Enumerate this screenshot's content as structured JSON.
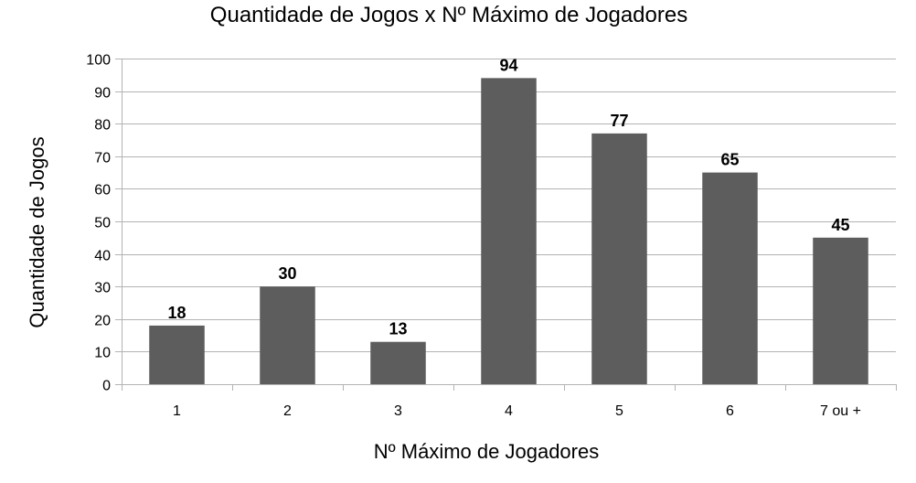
{
  "colors": {
    "bar": "#5d5d5d",
    "grid": "#b3b3b3",
    "background": "#ffffff"
  },
  "chart_data": {
    "type": "bar",
    "title": "Quantidade de Jogos x Nº Máximo de Jogadores",
    "xlabel": "Nº Máximo de Jogadores",
    "ylabel": "Quantidade de Jogos",
    "categories": [
      "1",
      "2",
      "3",
      "4",
      "5",
      "6",
      "7 ou +"
    ],
    "values": [
      18,
      30,
      13,
      94,
      77,
      65,
      45
    ],
    "ylim": [
      0,
      100
    ],
    "yticks": [
      0,
      10,
      20,
      30,
      40,
      50,
      60,
      70,
      80,
      90,
      100
    ],
    "grid": true,
    "legend": "none",
    "data_labels": true
  }
}
